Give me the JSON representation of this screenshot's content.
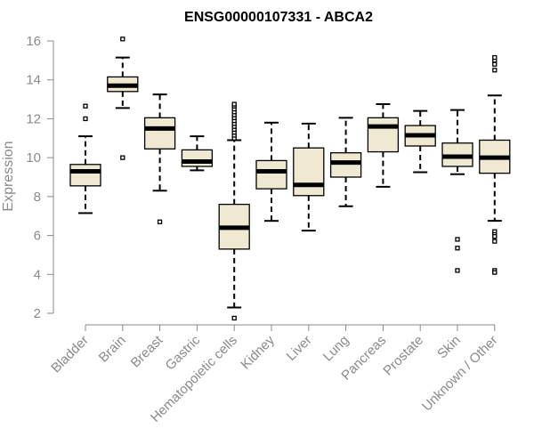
{
  "chart_data": {
    "type": "boxplot",
    "title": "ENSG00000107331 - ABCA2",
    "xlabel": "",
    "ylabel": "Expression",
    "ylim": [
      2,
      16
    ],
    "yticks": [
      2,
      4,
      6,
      8,
      10,
      12,
      14,
      16
    ],
    "grid": false,
    "box_fill": "#efe9d2",
    "stroke_color": "#000000",
    "axis_color": "#8a8a8a",
    "categories": [
      "Bladder",
      "Brain",
      "Breast",
      "Gastric",
      "Hematopoietic cells",
      "Kidney",
      "Liver",
      "Lung",
      "Pancreas",
      "Prostate",
      "Skin",
      "Unknown / Other"
    ],
    "boxes": [
      {
        "category": "Bladder",
        "whisker_low": 7.15,
        "q1": 8.55,
        "median": 9.3,
        "q3": 9.65,
        "whisker_high": 11.1,
        "outliers": [
          12.0,
          12.65
        ]
      },
      {
        "category": "Brain",
        "whisker_low": 12.55,
        "q1": 13.4,
        "median": 13.7,
        "q3": 14.15,
        "whisker_high": 15.15,
        "outliers": [
          16.1,
          10.0
        ]
      },
      {
        "category": "Breast",
        "whisker_low": 8.3,
        "q1": 10.45,
        "median": 11.5,
        "q3": 12.05,
        "whisker_high": 13.25,
        "outliers": [
          6.7
        ]
      },
      {
        "category": "Gastric",
        "whisker_low": 9.35,
        "q1": 9.55,
        "median": 9.8,
        "q3": 10.4,
        "whisker_high": 11.1,
        "outliers": []
      },
      {
        "category": "Hematopoietic cells",
        "whisker_low": 2.3,
        "q1": 5.3,
        "median": 6.4,
        "q3": 7.6,
        "whisker_high": 10.9,
        "outliers": [
          1.75,
          11.0,
          11.15,
          11.3,
          11.45,
          11.6,
          11.75,
          11.9,
          12.05,
          12.2,
          12.35,
          12.5,
          12.65,
          12.75
        ]
      },
      {
        "category": "Kidney",
        "whisker_low": 6.75,
        "q1": 8.4,
        "median": 9.3,
        "q3": 9.85,
        "whisker_high": 11.8,
        "outliers": []
      },
      {
        "category": "Liver",
        "whisker_low": 6.25,
        "q1": 8.05,
        "median": 8.6,
        "q3": 10.5,
        "whisker_high": 11.75,
        "outliers": []
      },
      {
        "category": "Lung",
        "whisker_low": 7.5,
        "q1": 9.0,
        "median": 9.75,
        "q3": 10.25,
        "whisker_high": 12.05,
        "outliers": []
      },
      {
        "category": "Pancreas",
        "whisker_low": 8.5,
        "q1": 10.3,
        "median": 11.6,
        "q3": 12.05,
        "whisker_high": 12.75,
        "outliers": []
      },
      {
        "category": "Prostate",
        "whisker_low": 9.25,
        "q1": 10.6,
        "median": 11.15,
        "q3": 11.65,
        "whisker_high": 12.4,
        "outliers": []
      },
      {
        "category": "Skin",
        "whisker_low": 9.15,
        "q1": 9.55,
        "median": 10.05,
        "q3": 10.75,
        "whisker_high": 12.45,
        "outliers": [
          5.8,
          5.35,
          4.2
        ]
      },
      {
        "category": "Unknown / Other",
        "whisker_low": 6.75,
        "q1": 9.2,
        "median": 10.0,
        "q3": 10.9,
        "whisker_high": 13.2,
        "outliers": [
          14.5,
          14.8,
          15.0,
          15.15,
          6.2,
          6.05,
          5.95,
          5.7,
          4.2,
          4.1
        ]
      }
    ]
  }
}
